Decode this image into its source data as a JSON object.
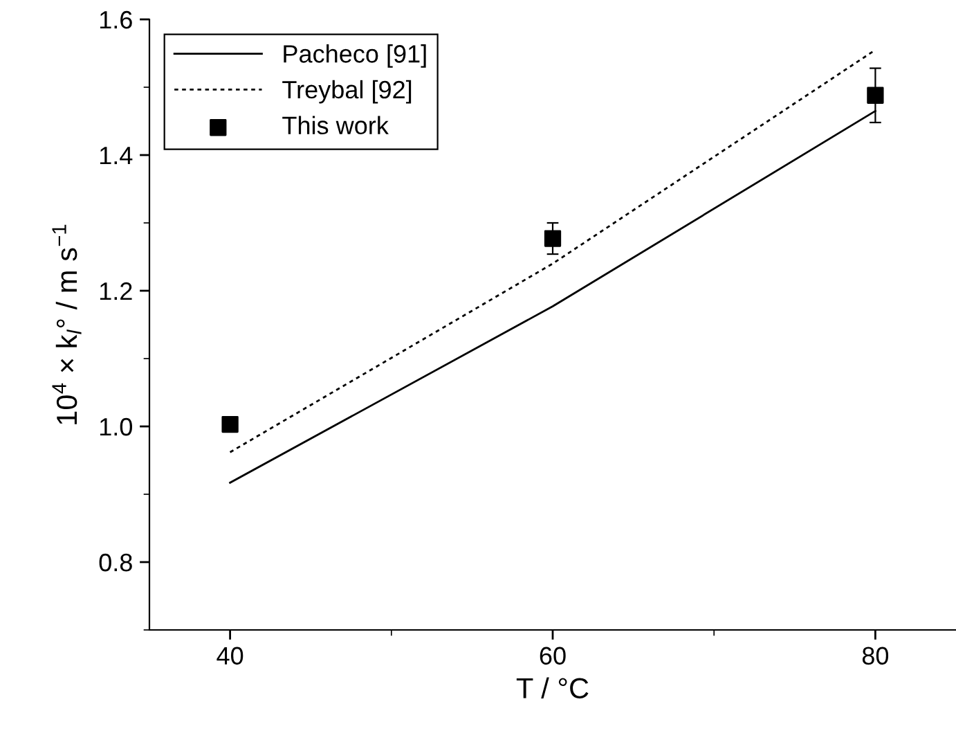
{
  "chart_data": {
    "type": "line",
    "xlabel": "T / °C",
    "ylabel": "10$^{4}$ × k$_{l}$° / m s$^{−1}$",
    "x": [
      40,
      60,
      80
    ],
    "series": [
      {
        "name": "Pacheco [91]",
        "color": "#000000",
        "line_style": "solid",
        "values": [
          0.917,
          1.177,
          1.465
        ]
      },
      {
        "name": "Treybal [92]",
        "color": "#000000",
        "line_style": "dotted",
        "values": [
          0.962,
          1.24,
          1.555
        ]
      },
      {
        "name": "This work",
        "color": "#000000",
        "type": "scatter",
        "marker": "square",
        "values": [
          1.003,
          1.277,
          1.488
        ],
        "errors": [
          null,
          0.023,
          0.04
        ]
      }
    ],
    "xlim": [
      35,
      85
    ],
    "xticks": [
      40,
      60,
      80
    ],
    "ylim": [
      0.7,
      1.6
    ],
    "yticks": [
      0.8,
      {
        "value": 1,
        "label": "1.0"
      },
      1.2,
      1.4,
      1.6
    ],
    "legend": "top left",
    "grid": false
  }
}
